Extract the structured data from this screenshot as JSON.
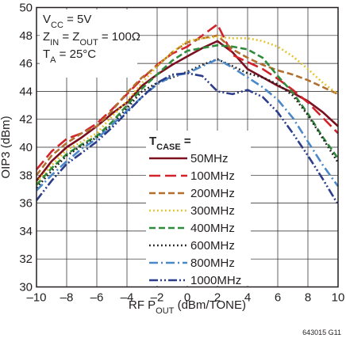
{
  "chart_data": {
    "type": "line",
    "xlabel_parts": [
      "RF P",
      "OUT",
      " (dBm/TONE)"
    ],
    "ylabel": "OIP3 (dBm)",
    "xlim": [
      -10,
      10
    ],
    "ylim": [
      30,
      50
    ],
    "x_ticks": [
      "–10",
      "–8",
      "–6",
      "–4",
      "–2",
      "0",
      "2",
      "4",
      "6",
      "8",
      "10"
    ],
    "y_ticks": [
      "30",
      "32",
      "34",
      "36",
      "38",
      "40",
      "42",
      "44",
      "46",
      "48",
      "50"
    ],
    "grid": true,
    "conditions": [
      {
        "parts": [
          [
            "V",
            ""
          ],
          [
            "CC",
            "sub"
          ],
          [
            " = 5V",
            ""
          ]
        ]
      },
      {
        "parts": [
          [
            "Z",
            ""
          ],
          [
            "IN",
            "sub"
          ],
          [
            " = Z",
            ""
          ],
          [
            "OUT",
            "sub"
          ],
          [
            " = 100Ω",
            ""
          ]
        ]
      },
      {
        "parts": [
          [
            "T",
            ""
          ],
          [
            "A",
            "sub"
          ],
          [
            " = 25°C",
            ""
          ]
        ]
      }
    ],
    "legend_title_parts": [
      "T",
      "CASE",
      " ="
    ],
    "legend_placement": "center-bottom",
    "series": [
      {
        "name": "50MHz",
        "color": "#7a1020",
        "dash": "solid",
        "x": [
          -10,
          -9,
          -8,
          -7,
          -6,
          -5,
          -4,
          -3,
          -2,
          -1,
          0,
          1,
          2,
          3,
          4,
          5,
          6,
          7,
          8,
          9,
          10
        ],
        "y": [
          37.6,
          39.0,
          40.0,
          40.7,
          41.5,
          42.4,
          43.2,
          44.4,
          45.2,
          45.9,
          46.5,
          47.1,
          47.6,
          46.8,
          45.6,
          45.0,
          44.4,
          43.9,
          43.3,
          42.5,
          41.5
        ]
      },
      {
        "name": "100MHz",
        "color": "#d2232a",
        "dash": "long",
        "x": [
          -10,
          -9,
          -8,
          -7,
          -6,
          -5,
          -4,
          -3,
          -2,
          -1,
          0,
          1,
          2,
          3,
          4,
          5,
          6,
          7,
          8,
          9,
          10
        ],
        "y": [
          38.4,
          39.7,
          40.6,
          41.0,
          41.7,
          42.7,
          43.8,
          44.9,
          45.9,
          46.7,
          47.2,
          48.0,
          48.8,
          46.6,
          46.1,
          45.6,
          44.9,
          44.1,
          43.2,
          42.1,
          41.0
        ]
      },
      {
        "name": "200MHz",
        "color": "#b26f30",
        "dash": "dash",
        "x": [
          -10,
          -9,
          -8,
          -7,
          -6,
          -5,
          -4,
          -3,
          -2,
          -1,
          0,
          1,
          2,
          3,
          4,
          5,
          6,
          7,
          8,
          9,
          10
        ],
        "y": [
          38.0,
          39.4,
          40.3,
          41.0,
          41.5,
          42.6,
          43.9,
          45.0,
          45.8,
          46.8,
          47.5,
          47.8,
          48.0,
          47.0,
          46.4,
          45.9,
          45.5,
          45.2,
          44.8,
          44.3,
          43.8
        ]
      },
      {
        "name": "300MHz",
        "color": "#e5c020",
        "dash": "dot",
        "x": [
          -10,
          -9,
          -8,
          -7,
          -6,
          -5,
          -4,
          -3,
          -2,
          -1,
          0,
          1,
          2,
          3,
          4,
          5,
          6,
          7,
          8,
          9,
          10
        ],
        "y": [
          37.5,
          38.7,
          39.8,
          40.4,
          41.0,
          42.2,
          43.3,
          44.6,
          45.8,
          46.8,
          47.6,
          47.8,
          47.9,
          47.8,
          47.8,
          47.6,
          47.2,
          46.5,
          45.6,
          44.6,
          43.8
        ]
      },
      {
        "name": "400MHz",
        "color": "#2e8b3a",
        "dash": "dash",
        "x": [
          -10,
          -9,
          -8,
          -7,
          -6,
          -5,
          -4,
          -3,
          -2,
          -1,
          0,
          1,
          2,
          3,
          4,
          5,
          6,
          7,
          8,
          9,
          10
        ],
        "y": [
          37.3,
          38.5,
          39.5,
          40.2,
          40.8,
          41.8,
          43.0,
          44.2,
          45.2,
          46.2,
          46.9,
          47.1,
          47.3,
          47.2,
          47.0,
          46.4,
          45.1,
          43.9,
          42.4,
          40.7,
          39.2
        ]
      },
      {
        "name": "600MHz",
        "color": "#231f20",
        "dash": "dot",
        "x": [
          -10,
          -9,
          -8,
          -7,
          -6,
          -5,
          -4,
          -3,
          -2,
          -1,
          0,
          1,
          2,
          3,
          4,
          5,
          6,
          7,
          8,
          9,
          10
        ],
        "y": [
          37.1,
          38.3,
          39.4,
          40.1,
          40.7,
          41.6,
          42.8,
          44.0,
          44.6,
          45.0,
          45.4,
          45.9,
          46.3,
          45.8,
          45.3,
          45.0,
          44.5,
          43.7,
          42.3,
          40.6,
          38.9
        ]
      },
      {
        "name": "800MHz",
        "color": "#4a88c8",
        "dash": "dashdot",
        "x": [
          -10,
          -9,
          -8,
          -7,
          -6,
          -5,
          -4,
          -3,
          -2,
          -1,
          0,
          1,
          2,
          3,
          4,
          5,
          6,
          7,
          8,
          9,
          10
        ],
        "y": [
          36.9,
          38.0,
          39.0,
          39.9,
          40.6,
          41.6,
          42.6,
          43.6,
          44.5,
          45.1,
          45.3,
          45.8,
          46.3,
          45.7,
          45.0,
          44.3,
          43.4,
          42.1,
          40.4,
          38.7,
          37.2
        ]
      },
      {
        "name": "1000MHz",
        "color": "#2c3d8c",
        "dash": "dashdotdot",
        "x": [
          -10,
          -9,
          -8,
          -7,
          -6,
          -5,
          -4,
          -3,
          -2,
          -1,
          0,
          1,
          2,
          3,
          4,
          5,
          6,
          7,
          8,
          9,
          10
        ],
        "y": [
          36.2,
          37.6,
          38.8,
          39.6,
          40.4,
          41.4,
          42.5,
          43.6,
          44.6,
          45.2,
          45.3,
          45.1,
          44.0,
          43.8,
          44.1,
          43.6,
          42.5,
          41.0,
          39.4,
          37.7,
          35.9
        ]
      }
    ]
  },
  "figure_id": "643015 G11"
}
